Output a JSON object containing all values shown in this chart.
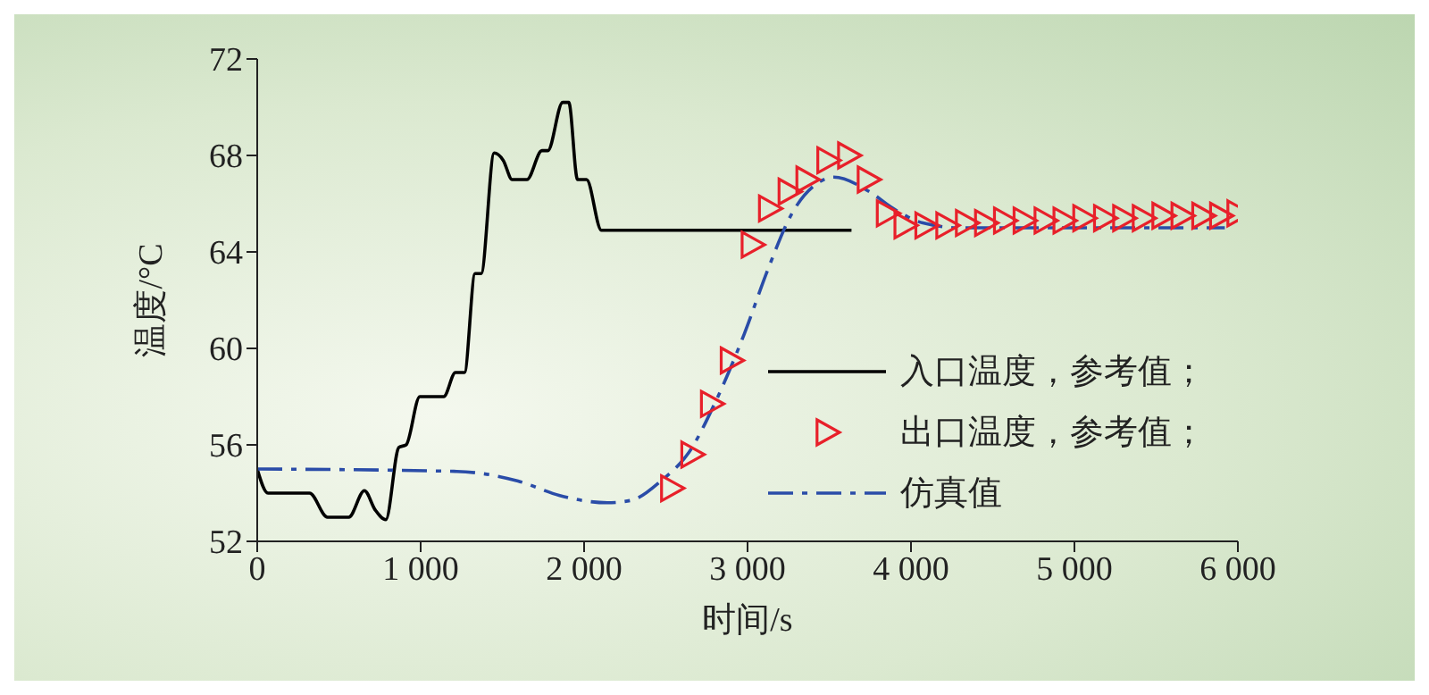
{
  "chart_data": {
    "type": "line",
    "xlabel": "时间/s",
    "ylabel": "温度/°C",
    "xlim": [
      0,
      6000
    ],
    "ylim": [
      52,
      72
    ],
    "xticks": [
      0,
      {
        "value": 1000,
        "label": "1 000"
      },
      {
        "value": 2000,
        "label": "2 000"
      },
      {
        "value": 3000,
        "label": "3 000"
      },
      {
        "value": 4000,
        "label": "4 000"
      },
      {
        "value": 5000,
        "label": "5 000"
      },
      {
        "value": 6000,
        "label": "6 000"
      }
    ],
    "yticks": [
      52,
      56,
      60,
      64,
      68,
      72
    ],
    "grid": false,
    "legend": "right",
    "series": [
      {
        "name": "入口温度，参考值；",
        "type": "line",
        "color": "#000000",
        "line_style": "solid",
        "marker": "none",
        "x": [
          0,
          66,
          320,
          430,
          560,
          656,
          722,
          787,
          867,
          911,
          995,
          1141,
          1213,
          1268,
          1333,
          1370,
          1450,
          1505,
          1560,
          1650,
          1742,
          1778,
          1869,
          1906,
          1960,
          2015,
          2106,
          3636
        ],
        "values": [
          55.0,
          54.0,
          54.0,
          53.0,
          53.0,
          54.1,
          53.3,
          52.9,
          55.9,
          56.0,
          58.0,
          58.0,
          59.0,
          59.0,
          63.1,
          63.1,
          68.1,
          67.8,
          67.0,
          67.0,
          68.2,
          68.2,
          70.2,
          70.2,
          67.0,
          67.0,
          64.9,
          64.9
        ]
      },
      {
        "name": "出口温度，参考值；",
        "type": "scatter",
        "color": "#e8202a",
        "marker": "triangle",
        "x": [
          2535,
          2659,
          2779,
          2900,
          3028,
          3134,
          3254,
          3363,
          3491,
          3618,
          3738,
          3855,
          3963,
          4091,
          4219,
          4339,
          4456,
          4572,
          4692,
          4820,
          4936,
          5057,
          5184,
          5301,
          5421,
          5541,
          5658,
          5785,
          5894,
          6000
        ],
        "values": [
          54.2,
          55.6,
          57.7,
          59.5,
          64.3,
          65.8,
          66.5,
          67.0,
          67.8,
          68.0,
          67.0,
          65.6,
          65.1,
          65.1,
          65.1,
          65.2,
          65.2,
          65.3,
          65.3,
          65.3,
          65.3,
          65.4,
          65.4,
          65.4,
          65.4,
          65.5,
          65.5,
          65.5,
          65.5,
          65.6
        ]
      },
      {
        "name": "仿真值",
        "type": "line",
        "color": "#2a4ca8",
        "line_style": "dashed",
        "marker": "none",
        "x": [
          0,
          1221,
          1596,
          1851,
          2142,
          2288,
          2470,
          2652,
          2798,
          2980,
          3126,
          3272,
          3418,
          3527,
          3745,
          3891,
          4073,
          4300,
          5920
        ],
        "values": [
          55.0,
          54.9,
          54.5,
          53.9,
          53.6,
          53.7,
          54.5,
          55.8,
          57.7,
          60.6,
          63.3,
          65.6,
          66.8,
          67.1,
          66.5,
          65.8,
          65.2,
          65.0,
          65.0
        ]
      }
    ]
  }
}
